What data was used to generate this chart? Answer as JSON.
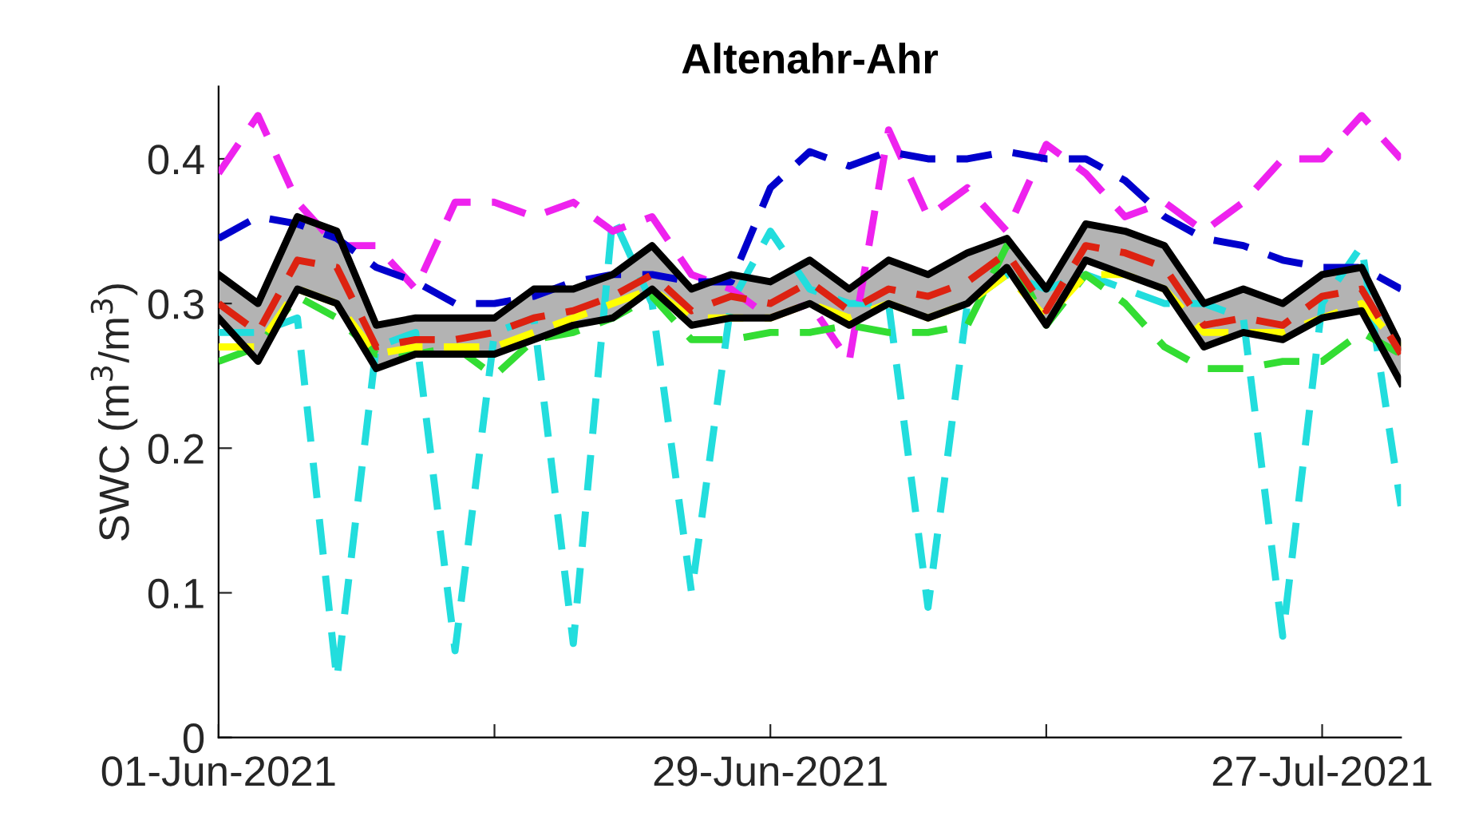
{
  "chart_data": {
    "type": "line",
    "title": "Altenahr-Ahr",
    "ylabel": "SWC (m$^{3}$/m$^{3}$)",
    "x": [
      "2021-06-01",
      "2021-06-03",
      "2021-06-05",
      "2021-06-07",
      "2021-06-09",
      "2021-06-11",
      "2021-06-13",
      "2021-06-15",
      "2021-06-17",
      "2021-06-19",
      "2021-06-21",
      "2021-06-23",
      "2021-06-25",
      "2021-06-27",
      "2021-06-29",
      "2021-07-01",
      "2021-07-03",
      "2021-07-05",
      "2021-07-07",
      "2021-07-09",
      "2021-07-11",
      "2021-07-13",
      "2021-07-15",
      "2021-07-17",
      "2021-07-19",
      "2021-07-21",
      "2021-07-23",
      "2021-07-25",
      "2021-07-27",
      "2021-07-29",
      "2021-07-31"
    ],
    "xlim": [
      "2021-06-01",
      "2021-07-31"
    ],
    "xticks": [
      {
        "value": "2021-06-01",
        "label": "01-Jun-2021"
      },
      {
        "value": "2021-06-15",
        "label": null
      },
      {
        "value": "2021-06-29",
        "label": "29-Jun-2021"
      },
      {
        "value": "2021-07-13",
        "label": null
      },
      {
        "value": "2021-07-27",
        "label": "27-Jul-2021"
      }
    ],
    "ylim": [
      0,
      0.45
    ],
    "yticks": [
      0,
      0.1,
      0.2,
      0.3,
      0.4
    ],
    "grid": false,
    "legend": false,
    "line_style": "dashed",
    "marker": "none",
    "series": [
      {
        "color": "#22dddd",
        "values": [
          0.28,
          0.28,
          0.29,
          0.04,
          0.27,
          0.28,
          0.06,
          0.28,
          0.29,
          0.065,
          0.36,
          0.3,
          0.1,
          0.3,
          0.35,
          0.31,
          0.3,
          0.3,
          0.09,
          0.3,
          0.32,
          0.31,
          0.32,
          0.31,
          0.3,
          0.3,
          0.29,
          0.07,
          0.3,
          0.34,
          0.16
        ]
      },
      {
        "color": "#ee22ee",
        "values": [
          0.39,
          0.43,
          0.37,
          0.34,
          0.34,
          0.31,
          0.37,
          0.37,
          0.36,
          0.37,
          0.35,
          0.36,
          0.32,
          0.31,
          0.29,
          0.3,
          0.26,
          0.42,
          0.36,
          0.38,
          0.35,
          0.41,
          0.39,
          0.36,
          0.37,
          0.35,
          0.37,
          0.4,
          0.4,
          0.43,
          0.4
        ]
      },
      {
        "color": "#0000cc",
        "values": [
          0.345,
          0.36,
          0.355,
          0.345,
          0.325,
          0.315,
          0.3,
          0.3,
          0.305,
          0.315,
          0.32,
          0.32,
          0.315,
          0.315,
          0.38,
          0.405,
          0.395,
          0.405,
          0.4,
          0.4,
          0.405,
          0.4,
          0.4,
          0.385,
          0.36,
          0.345,
          0.34,
          0.33,
          0.325,
          0.325,
          0.31
        ]
      },
      {
        "color": "#33dd33",
        "values": [
          0.26,
          0.27,
          0.305,
          0.29,
          0.265,
          0.265,
          0.27,
          0.25,
          0.275,
          0.28,
          0.29,
          0.305,
          0.275,
          0.275,
          0.28,
          0.28,
          0.285,
          0.28,
          0.28,
          0.285,
          0.34,
          0.285,
          0.32,
          0.3,
          0.27,
          0.255,
          0.255,
          0.26,
          0.26,
          0.28,
          0.265
        ]
      },
      {
        "color": "#ffff00",
        "values": [
          0.27,
          0.27,
          0.31,
          0.3,
          0.265,
          0.27,
          0.27,
          0.27,
          0.28,
          0.29,
          0.3,
          0.31,
          0.29,
          0.29,
          0.29,
          0.3,
          0.29,
          0.3,
          0.29,
          0.3,
          0.32,
          0.29,
          0.32,
          0.32,
          0.31,
          0.28,
          0.28,
          0.28,
          0.29,
          0.3,
          0.27
        ]
      },
      {
        "color": "#000000",
        "line_style": "solid",
        "values": [
          0.29,
          0.26,
          0.31,
          0.3,
          0.255,
          0.265,
          0.265,
          0.265,
          0.275,
          0.285,
          0.29,
          0.31,
          0.285,
          0.29,
          0.29,
          0.3,
          0.285,
          0.3,
          0.29,
          0.3,
          0.325,
          0.285,
          0.33,
          0.32,
          0.31,
          0.27,
          0.28,
          0.275,
          0.29,
          0.295,
          0.245
        ]
      },
      {
        "color": "#000000",
        "line_style": "solid",
        "values": [
          0.32,
          0.3,
          0.36,
          0.35,
          0.285,
          0.29,
          0.29,
          0.29,
          0.31,
          0.31,
          0.32,
          0.34,
          0.31,
          0.32,
          0.315,
          0.33,
          0.31,
          0.33,
          0.32,
          0.335,
          0.345,
          0.31,
          0.355,
          0.35,
          0.34,
          0.3,
          0.31,
          0.3,
          0.32,
          0.325,
          0.27
        ]
      },
      {
        "color": "#dd2211",
        "values": [
          0.3,
          0.28,
          0.33,
          0.325,
          0.27,
          0.275,
          0.275,
          0.28,
          0.29,
          0.295,
          0.305,
          0.32,
          0.295,
          0.305,
          0.3,
          0.315,
          0.295,
          0.31,
          0.305,
          0.315,
          0.335,
          0.295,
          0.34,
          0.335,
          0.325,
          0.285,
          0.29,
          0.285,
          0.305,
          0.31,
          0.265
        ],
        "lower": [
          0.29,
          0.26,
          0.31,
          0.3,
          0.255,
          0.265,
          0.265,
          0.265,
          0.275,
          0.285,
          0.29,
          0.31,
          0.285,
          0.29,
          0.29,
          0.3,
          0.285,
          0.3,
          0.29,
          0.3,
          0.325,
          0.285,
          0.33,
          0.32,
          0.31,
          0.27,
          0.28,
          0.275,
          0.29,
          0.295,
          0.245
        ],
        "upper": [
          0.32,
          0.3,
          0.36,
          0.35,
          0.285,
          0.29,
          0.29,
          0.29,
          0.31,
          0.31,
          0.32,
          0.34,
          0.31,
          0.32,
          0.315,
          0.33,
          0.31,
          0.33,
          0.32,
          0.335,
          0.345,
          0.31,
          0.355,
          0.35,
          0.34,
          0.3,
          0.31,
          0.3,
          0.32,
          0.325,
          0.27
        ]
      }
    ]
  }
}
